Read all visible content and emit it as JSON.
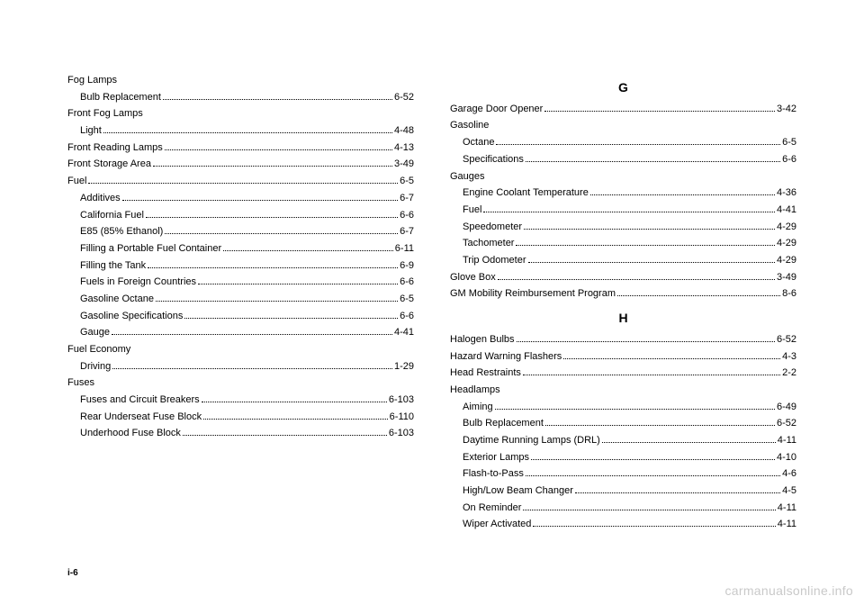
{
  "footer": "i-6",
  "watermark": "carmanualsonline.info",
  "left": [
    {
      "label": "Fog Lamps",
      "indent": 0
    },
    {
      "label": "Bulb Replacement",
      "page": "6-52",
      "indent": 1
    },
    {
      "label": "Front Fog Lamps",
      "indent": 0
    },
    {
      "label": "Light",
      "page": "4-48",
      "indent": 1
    },
    {
      "label": "Front Reading Lamps",
      "page": "4-13",
      "indent": 0
    },
    {
      "label": "Front Storage Area",
      "page": "3-49",
      "indent": 0
    },
    {
      "label": "Fuel",
      "page": "6-5",
      "indent": 0
    },
    {
      "label": "Additives",
      "page": "6-7",
      "indent": 1
    },
    {
      "label": "California Fuel",
      "page": "6-6",
      "indent": 1
    },
    {
      "label": "E85 (85% Ethanol)",
      "page": "6-7",
      "indent": 1
    },
    {
      "label": "Filling a Portable Fuel Container",
      "page": "6-11",
      "indent": 1
    },
    {
      "label": "Filling the Tank",
      "page": "6-9",
      "indent": 1
    },
    {
      "label": "Fuels in Foreign Countries",
      "page": "6-6",
      "indent": 1
    },
    {
      "label": "Gasoline Octane",
      "page": "6-5",
      "indent": 1
    },
    {
      "label": "Gasoline Specifications",
      "page": "6-6",
      "indent": 1
    },
    {
      "label": "Gauge",
      "page": "4-41",
      "indent": 1
    },
    {
      "label": "Fuel Economy",
      "indent": 0
    },
    {
      "label": "Driving",
      "page": "1-29",
      "indent": 1
    },
    {
      "label": "Fuses",
      "indent": 0
    },
    {
      "label": "Fuses and Circuit Breakers",
      "page": "6-103",
      "indent": 1
    },
    {
      "label": "Rear Underseat Fuse Block",
      "page": "6-110",
      "indent": 1
    },
    {
      "label": "Underhood Fuse Block",
      "page": "6-103",
      "indent": 1
    }
  ],
  "rightSections": [
    {
      "letter": "G",
      "entries": [
        {
          "label": "Garage Door Opener",
          "page": "3-42",
          "indent": 0
        },
        {
          "label": "Gasoline",
          "indent": 0
        },
        {
          "label": "Octane",
          "page": "6-5",
          "indent": 1
        },
        {
          "label": "Specifications",
          "page": "6-6",
          "indent": 1
        },
        {
          "label": "Gauges",
          "indent": 0
        },
        {
          "label": "Engine Coolant Temperature",
          "page": "4-36",
          "indent": 1
        },
        {
          "label": "Fuel",
          "page": "4-41",
          "indent": 1
        },
        {
          "label": "Speedometer",
          "page": "4-29",
          "indent": 1
        },
        {
          "label": "Tachometer",
          "page": "4-29",
          "indent": 1
        },
        {
          "label": "Trip Odometer",
          "page": "4-29",
          "indent": 1
        },
        {
          "label": "Glove Box",
          "page": "3-49",
          "indent": 0
        },
        {
          "label": "GM Mobility Reimbursement Program",
          "page": "8-6",
          "indent": 0
        }
      ]
    },
    {
      "letter": "H",
      "entries": [
        {
          "label": "Halogen Bulbs",
          "page": "6-52",
          "indent": 0
        },
        {
          "label": "Hazard Warning Flashers",
          "page": "4-3",
          "indent": 0
        },
        {
          "label": "Head Restraints",
          "page": "2-2",
          "indent": 0
        },
        {
          "label": "Headlamps",
          "indent": 0
        },
        {
          "label": "Aiming",
          "page": "6-49",
          "indent": 1
        },
        {
          "label": "Bulb Replacement",
          "page": "6-52",
          "indent": 1
        },
        {
          "label": "Daytime Running Lamps (DRL)",
          "page": "4-11",
          "indent": 1
        },
        {
          "label": "Exterior Lamps",
          "page": "4-10",
          "indent": 1
        },
        {
          "label": "Flash-to-Pass",
          "page": "4-6",
          "indent": 1
        },
        {
          "label": "High/Low Beam Changer",
          "page": "4-5",
          "indent": 1
        },
        {
          "label": "On Reminder",
          "page": "4-11",
          "indent": 1
        },
        {
          "label": "Wiper Activated",
          "page": "4-11",
          "indent": 1
        }
      ]
    }
  ]
}
